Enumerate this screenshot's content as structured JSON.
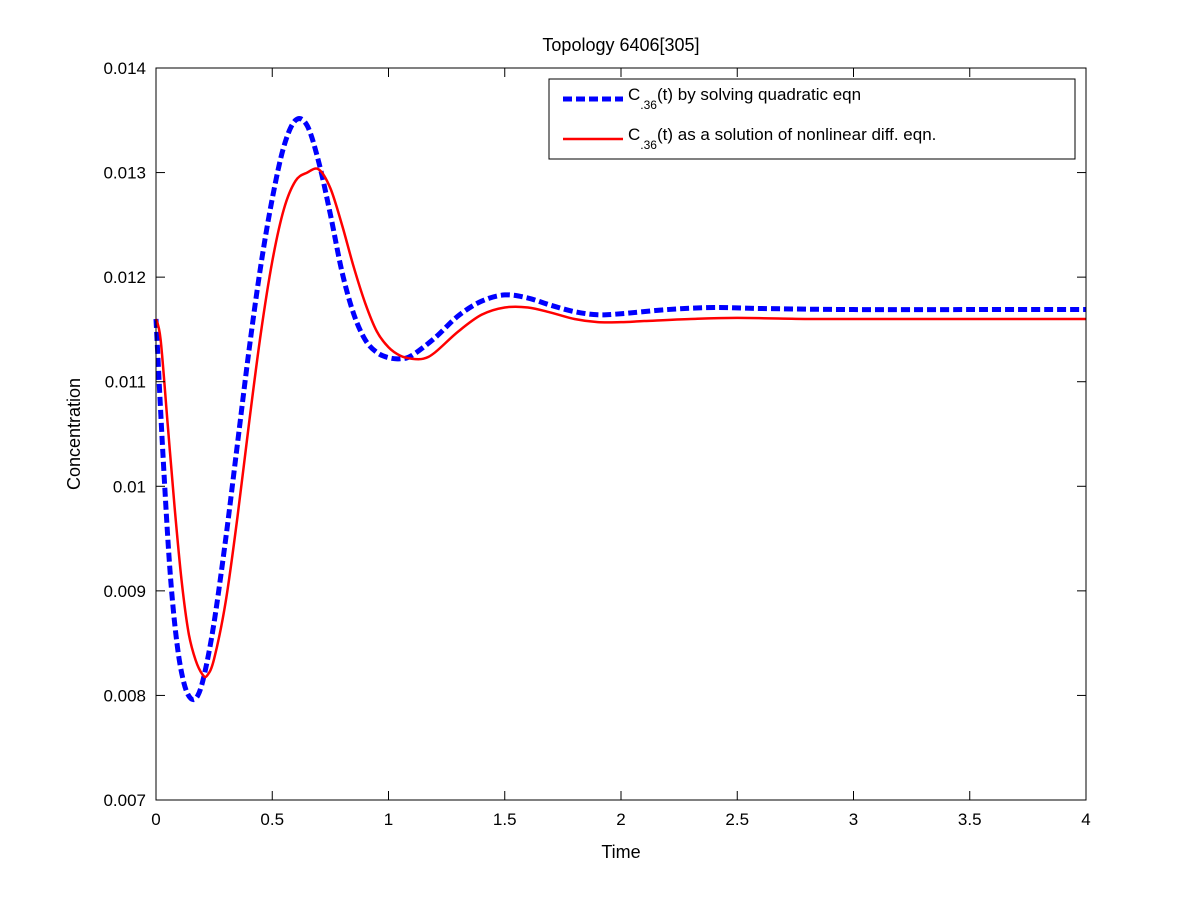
{
  "chart_data": {
    "type": "line",
    "title": "Topology 6406[305]",
    "xlabel": "Time",
    "ylabel": "Concentration",
    "xlim": [
      0,
      4
    ],
    "ylim": [
      0.007,
      0.014
    ],
    "xticks": [
      0,
      0.5,
      1,
      1.5,
      2,
      2.5,
      3,
      3.5,
      4
    ],
    "xtick_labels": [
      "0",
      "0.5",
      "1",
      "1.5",
      "2",
      "2.5",
      "3",
      "3.5",
      "4"
    ],
    "yticks": [
      0.007,
      0.008,
      0.009,
      0.01,
      0.011,
      0.012,
      0.013,
      0.014
    ],
    "ytick_labels": [
      "0.007",
      "0.008",
      "0.009",
      "0.01",
      "0.011",
      "0.012",
      "0.013",
      "0.014"
    ],
    "grid": false,
    "legend_position": "top-right",
    "series": [
      {
        "name": "C.36(t) by solving quadratic eqn",
        "legend": {
          "main": "C",
          "sub": ".36",
          "rest": "(t) by solving quadratic eqn"
        },
        "color": "#0000ff",
        "style": "dashed",
        "points": [
          [
            0.0,
            0.0116
          ],
          [
            0.03,
            0.0103
          ],
          [
            0.06,
            0.0092
          ],
          [
            0.09,
            0.0085
          ],
          [
            0.12,
            0.00812
          ],
          [
            0.15,
            0.00797
          ],
          [
            0.18,
            0.008
          ],
          [
            0.21,
            0.00822
          ],
          [
            0.25,
            0.0087
          ],
          [
            0.3,
            0.0095
          ],
          [
            0.35,
            0.0104
          ],
          [
            0.4,
            0.0113
          ],
          [
            0.45,
            0.0121
          ],
          [
            0.5,
            0.01275
          ],
          [
            0.55,
            0.01325
          ],
          [
            0.6,
            0.0135
          ],
          [
            0.65,
            0.01345
          ],
          [
            0.7,
            0.0131
          ],
          [
            0.75,
            0.0126
          ],
          [
            0.8,
            0.01205
          ],
          [
            0.85,
            0.01165
          ],
          [
            0.9,
            0.0114
          ],
          [
            0.95,
            0.01128
          ],
          [
            1.0,
            0.01123
          ],
          [
            1.05,
            0.01122
          ],
          [
            1.1,
            0.01125
          ],
          [
            1.2,
            0.01142
          ],
          [
            1.3,
            0.01163
          ],
          [
            1.4,
            0.01177
          ],
          [
            1.5,
            0.01183
          ],
          [
            1.6,
            0.0118
          ],
          [
            1.7,
            0.01173
          ],
          [
            1.8,
            0.01167
          ],
          [
            1.9,
            0.01164
          ],
          [
            2.0,
            0.01165
          ],
          [
            2.2,
            0.01169
          ],
          [
            2.4,
            0.01171
          ],
          [
            2.6,
            0.0117
          ],
          [
            3.0,
            0.01169
          ],
          [
            3.5,
            0.01169
          ],
          [
            4.0,
            0.01169
          ]
        ]
      },
      {
        "name": "C.36(t) as a solution of nonlinear diff. eqn.",
        "legend": {
          "main": "C",
          "sub": ".36",
          "rest": "(t) as a solution of nonlinear diff. eqn."
        },
        "color": "#ff0000",
        "style": "solid",
        "points": [
          [
            0.0,
            0.0116
          ],
          [
            0.02,
            0.0114
          ],
          [
            0.05,
            0.0106
          ],
          [
            0.08,
            0.0098
          ],
          [
            0.11,
            0.0091
          ],
          [
            0.14,
            0.0086
          ],
          [
            0.17,
            0.00834
          ],
          [
            0.2,
            0.0082
          ],
          [
            0.22,
            0.00819
          ],
          [
            0.25,
            0.00835
          ],
          [
            0.3,
            0.0089
          ],
          [
            0.35,
            0.0097
          ],
          [
            0.4,
            0.0106
          ],
          [
            0.45,
            0.01145
          ],
          [
            0.5,
            0.01215
          ],
          [
            0.55,
            0.01265
          ],
          [
            0.6,
            0.01292
          ],
          [
            0.65,
            0.013
          ],
          [
            0.7,
            0.01303
          ],
          [
            0.75,
            0.01285
          ],
          [
            0.8,
            0.0125
          ],
          [
            0.85,
            0.0121
          ],
          [
            0.9,
            0.01175
          ],
          [
            0.95,
            0.01148
          ],
          [
            1.0,
            0.01133
          ],
          [
            1.05,
            0.01125
          ],
          [
            1.1,
            0.01122
          ],
          [
            1.15,
            0.01122
          ],
          [
            1.2,
            0.01128
          ],
          [
            1.3,
            0.01148
          ],
          [
            1.4,
            0.01164
          ],
          [
            1.5,
            0.01171
          ],
          [
            1.6,
            0.01171
          ],
          [
            1.7,
            0.01166
          ],
          [
            1.8,
            0.0116
          ],
          [
            1.9,
            0.01157
          ],
          [
            2.0,
            0.01157
          ],
          [
            2.1,
            0.01158
          ],
          [
            2.3,
            0.0116
          ],
          [
            2.5,
            0.01161
          ],
          [
            2.8,
            0.0116
          ],
          [
            3.0,
            0.0116
          ],
          [
            3.5,
            0.0116
          ],
          [
            4.0,
            0.0116
          ]
        ]
      }
    ]
  }
}
